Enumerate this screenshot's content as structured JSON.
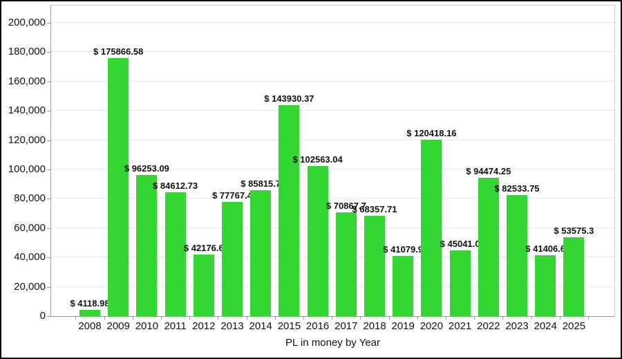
{
  "window": {
    "background": "#ffffff",
    "border_color": "#000000"
  },
  "chart_data": {
    "type": "bar",
    "title": "",
    "xlabel": "PL in money by Year",
    "ylabel": "",
    "ylim": [
      0,
      200000
    ],
    "ytick_interval": 20000,
    "ytick_labels": [
      "0",
      "20,000",
      "40,000",
      "60,000",
      "80,000",
      "100,000",
      "120,000",
      "140,000",
      "160,000",
      "180,000",
      "200,000"
    ],
    "categories": [
      "2008",
      "2009",
      "2010",
      "2011",
      "2012",
      "2013",
      "2014",
      "2015",
      "2016",
      "2017",
      "2018",
      "2019",
      "2020",
      "2021",
      "2022",
      "2023",
      "2024",
      "2025"
    ],
    "values": [
      4118.98,
      175866.58,
      96253.09,
      84612.73,
      42176.6,
      77767.4,
      85815.7,
      143930.37,
      102563.04,
      70867.7,
      68357.71,
      41079.9,
      120418.16,
      45041.0,
      94474.25,
      82533.75,
      41406.6,
      53575.3
    ],
    "bar_labels": [
      "$ 4118.98",
      "$ 175866.58",
      "$ 96253.09",
      "$ 84612.73",
      "$ 42176.6",
      "$ 77767.4",
      "$ 85815.7",
      "$ 143930.37",
      "$ 102563.04",
      "$ 70867.7",
      "$ 68357.71",
      "$ 41079.9",
      "$ 120418.16",
      "$ 45041.0",
      "$ 94474.25",
      "$ 82533.75",
      "$ 41406.6",
      "$ 53575.3"
    ],
    "bar_color": "#33d633",
    "grid": "horizontal dotted",
    "legend": "none"
  }
}
